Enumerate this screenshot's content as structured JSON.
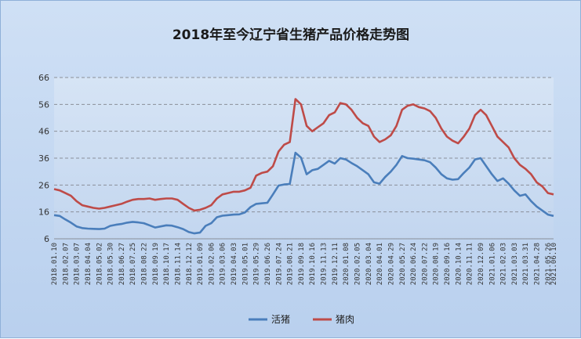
{
  "chart_data": {
    "type": "line",
    "title": "2018年至今辽宁省生猪产品价格走势图",
    "ylim": [
      6,
      66
    ],
    "yticks": [
      6,
      16,
      26,
      36,
      46,
      56,
      66
    ],
    "grid": "horizontal dashed",
    "legend_position": "bottom-center",
    "x": [
      "2018.01.10",
      "2018.01.24",
      "2018.02.07",
      "2018.02.21",
      "2018.03.07",
      "2018.03.21",
      "2018.04.04",
      "2018.04.18",
      "2018.05.02",
      "2018.05.16",
      "2018.05.30",
      "2018.06.13",
      "2018.06.27",
      "2018.07.11",
      "2018.07.25",
      "2018.08.08",
      "2018.08.22",
      "2018.09.05",
      "2018.09.19",
      "2018.10.03",
      "2018.10.17",
      "2018.10.31",
      "2018.11.14",
      "2018.11.28",
      "2018.12.12",
      "2018.12.26",
      "2019.01.09",
      "2019.01.23",
      "2019.02.06",
      "2019.02.20",
      "2019.03.06",
      "2019.03.20",
      "2019.04.03",
      "2019.04.17",
      "2019.05.01",
      "2019.05.15",
      "2019.05.29",
      "2019.06.12",
      "2019.06.26",
      "2019.07.10",
      "2019.07.24",
      "2019.08.07",
      "2019.08.21",
      "2019.09.04",
      "2019.09.18",
      "2019.10.02",
      "2019.10.16",
      "2019.10.30",
      "2019.11.13",
      "2019.11.27",
      "2019.12.11",
      "2019.12.25",
      "2020.01.08",
      "2020.01.22",
      "2020.02.05",
      "2020.02.19",
      "2020.03.04",
      "2020.03.18",
      "2020.04.01",
      "2020.04.15",
      "2020.04.29",
      "2020.05.13",
      "2020.05.27",
      "2020.06.10",
      "2020.06.24",
      "2020.07.08",
      "2020.07.22",
      "2020.08.05",
      "2020.08.19",
      "2020.09.02",
      "2020.09.16",
      "2020.09.30",
      "2020.10.14",
      "2020.10.28",
      "2020.11.11",
      "2020.11.25",
      "2020.12.09",
      "2020.12.23",
      "2021.01.06",
      "2021.01.20",
      "2021.02.03",
      "2021.02.17",
      "2021.03.03",
      "2021.03.17",
      "2021.03.31",
      "2021.04.14",
      "2021.04.28",
      "2021.05.12",
      "2021.05.26",
      "2021.06.10"
    ],
    "x_tick_labels": [
      "2018.01.10",
      "2018.02.07",
      "2018.03.07",
      "2018.04.04",
      "2018.05.02",
      "2018.05.30",
      "2018.06.27",
      "2018.07.25",
      "2018.08.22",
      "2018.09.19",
      "2018.10.17",
      "2018.11.14",
      "2018.12.12",
      "2019.01.09",
      "2019.02.06",
      "2019.03.06",
      "2019.04.03",
      "2019.05.01",
      "2019.05.29",
      "2019.06.26",
      "2019.07.24",
      "2019.08.21",
      "2019.09.18",
      "2019.10.16",
      "2019.11.13",
      "2019.12.11",
      "2020.01.08",
      "2020.02.05",
      "2020.03.04",
      "2020.04.01",
      "2020.04.29",
      "2020.05.27",
      "2020.06.24",
      "2020.07.22",
      "2020.08.19",
      "2020.09.16",
      "2020.10.14",
      "2020.11.11",
      "2020.12.09",
      "2021.01.06",
      "2021.02.03",
      "2021.03.03",
      "2021.03.31",
      "2021.04.28",
      "2021.05.26",
      "2021.06.10"
    ],
    "series": [
      {
        "name": "活猪",
        "color": "#4a7ebb",
        "values": [
          14.8,
          14.5,
          13.2,
          12.0,
          10.6,
          10.0,
          9.8,
          9.7,
          9.6,
          9.8,
          10.8,
          11.2,
          11.5,
          12.0,
          12.3,
          12.1,
          11.8,
          11.0,
          10.2,
          10.6,
          11.0,
          10.9,
          10.3,
          9.6,
          8.5,
          8.0,
          8.3,
          10.8,
          11.8,
          14.0,
          14.6,
          14.8,
          15.0,
          15.1,
          15.8,
          17.8,
          19.0,
          19.2,
          19.4,
          22.5,
          25.8,
          26.2,
          26.4,
          38.0,
          36.2,
          30.0,
          31.5,
          32.0,
          33.5,
          35.0,
          34.0,
          36.0,
          35.5,
          34.2,
          33.0,
          31.5,
          30.0,
          27.0,
          26.5,
          29.0,
          31.0,
          33.5,
          36.8,
          36.0,
          35.8,
          35.5,
          35.2,
          34.5,
          32.5,
          30.0,
          28.5,
          28.0,
          28.2,
          30.5,
          32.5,
          35.5,
          36.0,
          33.0,
          30.0,
          27.5,
          28.5,
          26.5,
          24.0,
          22.0,
          22.5,
          20.0,
          18.0,
          16.5,
          15.0,
          14.5
        ]
      },
      {
        "name": "猪肉",
        "color": "#be4b48",
        "values": [
          24.5,
          24.0,
          23.0,
          22.0,
          20.0,
          18.5,
          18.0,
          17.5,
          17.2,
          17.5,
          18.0,
          18.5,
          19.0,
          19.8,
          20.5,
          20.8,
          20.8,
          21.0,
          20.5,
          20.8,
          21.0,
          21.0,
          20.5,
          19.0,
          17.5,
          16.5,
          16.8,
          17.5,
          18.5,
          21.0,
          22.5,
          23.0,
          23.5,
          23.5,
          24.0,
          25.0,
          29.5,
          30.5,
          31.0,
          33.0,
          38.5,
          41.0,
          42.0,
          58.0,
          56.0,
          48.0,
          46.0,
          47.5,
          49.0,
          52.0,
          53.0,
          56.5,
          56.0,
          54.0,
          51.0,
          49.0,
          48.0,
          44.0,
          42.0,
          43.0,
          44.5,
          48.0,
          54.0,
          55.5,
          56.0,
          55.0,
          54.5,
          53.5,
          51.0,
          47.0,
          44.0,
          42.5,
          41.5,
          44.0,
          47.0,
          52.0,
          54.0,
          52.0,
          48.0,
          44.0,
          42.0,
          40.0,
          36.0,
          33.5,
          32.0,
          30.0,
          27.0,
          25.5,
          23.0,
          22.5
        ]
      }
    ]
  }
}
